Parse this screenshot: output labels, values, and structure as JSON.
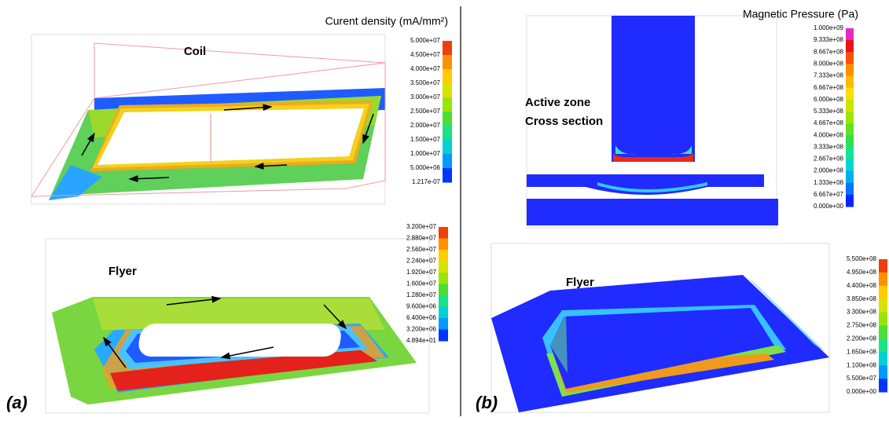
{
  "panel_a": {
    "label": "(a)",
    "coil": {
      "title": "Coil",
      "colorbar_title": "Curent density (mA/mm²)",
      "colorbar_ticks": [
        "5.000e+07",
        "4.500e+07",
        "4.000e+07",
        "3.500e+07",
        "3.000e+07",
        "2.500e+07",
        "2.000e+07",
        "1.500e+07",
        "1.000e+07",
        "5.000e+06",
        "1.217e-07"
      ]
    },
    "flyer": {
      "title": "Flyer",
      "colorbar_ticks": [
        "3.200e+07",
        "2.880e+07",
        "2.560e+07",
        "2.240e+07",
        "1.920e+07",
        "1.600e+07",
        "1.280e+07",
        "9.600e+06",
        "6.400e+06",
        "3.200e+06",
        "4.894e+01"
      ]
    }
  },
  "panel_b": {
    "label": "(b)",
    "cross_section": {
      "title_lines": [
        "Active zone",
        "Cross section"
      ],
      "colorbar_title": "Magnetic Pressure (Pa)",
      "colorbar_ticks": [
        "1.000e+09",
        "9.333e+08",
        "8.667e+08",
        "8.000e+08",
        "7.333e+08",
        "6.667e+08",
        "6.000e+08",
        "5.333e+08",
        "4.667e+08",
        "4.000e+08",
        "3.333e+08",
        "2.667e+08",
        "2.000e+08",
        "1.333e+08",
        "6.667e+07",
        "0.000e+00"
      ]
    },
    "flyer": {
      "title": "Flyer",
      "colorbar_ticks": [
        "5.500e+08",
        "4.950e+08",
        "4.400e+08",
        "3.850e+08",
        "3.300e+08",
        "2.750e+08",
        "2.200e+08",
        "1.650e+08",
        "1.100e+08",
        "5.500e+07",
        "0.000e+00"
      ]
    }
  }
}
